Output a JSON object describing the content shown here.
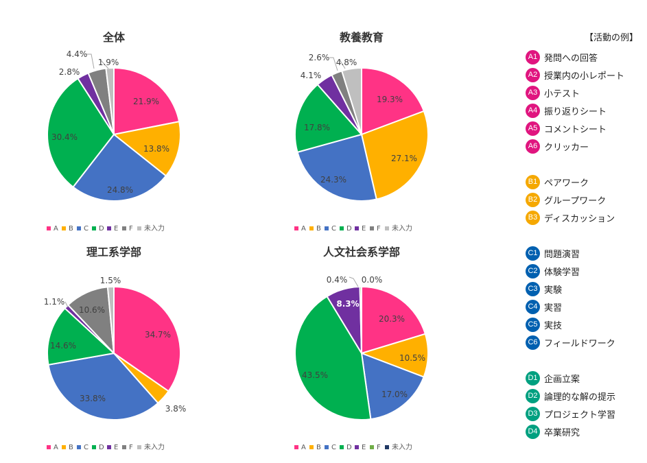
{
  "colors": {
    "A": "#ff3385",
    "B": "#ffb000",
    "C": "#4472c4",
    "D": "#00b050",
    "E": "#7030a0",
    "F": "#808080",
    "unentered": "#bfbfbf",
    "F_person": "#70ad47",
    "unentered_person": "#1f3864",
    "groupA": "#e0157f",
    "groupB": "#f5a800",
    "groupC": "#0060b0",
    "groupD": "#00a080"
  },
  "chart_data": [
    {
      "type": "pie",
      "title": "全体",
      "categories": [
        "A",
        "B",
        "C",
        "D",
        "E",
        "F",
        "未入力"
      ],
      "values": [
        21.9,
        13.8,
        24.8,
        30.4,
        2.8,
        4.4,
        1.9
      ],
      "labels": [
        "21.9%",
        "13.8%",
        "24.8%",
        "30.4%",
        "2.8%",
        "4.4%",
        "1.9%"
      ],
      "legend": [
        "A",
        "B",
        "C",
        "D",
        "E",
        "F",
        "未入力"
      ],
      "legend_position": "bottom"
    },
    {
      "type": "pie",
      "title": "教養教育",
      "categories": [
        "A",
        "B",
        "C",
        "D",
        "E",
        "F",
        "未入力"
      ],
      "values": [
        19.3,
        27.1,
        24.3,
        17.8,
        4.1,
        2.6,
        4.8
      ],
      "labels": [
        "19.3%",
        "27.1%",
        "24.3%",
        "17.8%",
        "4.1%",
        "2.6%",
        "4.8%"
      ],
      "legend": [
        "A",
        "B",
        "C",
        "D",
        "E",
        "F",
        "未入力"
      ],
      "legend_position": "bottom"
    },
    {
      "type": "pie",
      "title": "理工系学部",
      "categories": [
        "A",
        "B",
        "C",
        "D",
        "E",
        "F",
        "未入力"
      ],
      "values": [
        34.7,
        3.8,
        33.8,
        14.6,
        1.1,
        10.6,
        1.5
      ],
      "labels": [
        "34.7%",
        "3.8%",
        "33.8%",
        "14.6%",
        "1.1%",
        "10.6%",
        "1.5%"
      ],
      "legend": [
        "A",
        "B",
        "C",
        "D",
        "E",
        "F",
        "未入力"
      ],
      "legend_position": "bottom"
    },
    {
      "type": "pie",
      "title": "人文社会系学部",
      "categories": [
        "A",
        "B",
        "C",
        "D",
        "E",
        "F",
        "未入力"
      ],
      "values": [
        20.3,
        10.5,
        17.0,
        43.5,
        8.3,
        0.4,
        0.0
      ],
      "labels": [
        "20.3%",
        "10.5%",
        "17.0%",
        "43.5%",
        "8.3%",
        "0.4%",
        "0.0%"
      ],
      "legend": [
        "A",
        "B",
        "C",
        "D",
        "E",
        "F",
        "未入力"
      ],
      "legend_position": "bottom"
    }
  ],
  "activity_panel": {
    "title": "【活動の例】",
    "items": [
      {
        "code": "A1",
        "label": "発問への回答",
        "group": "A"
      },
      {
        "code": "A2",
        "label": "授業内の小レポート",
        "group": "A"
      },
      {
        "code": "A3",
        "label": "小テスト",
        "group": "A"
      },
      {
        "code": "A4",
        "label": "振り返りシート",
        "group": "A"
      },
      {
        "code": "A5",
        "label": "コメントシート",
        "group": "A"
      },
      {
        "code": "A6",
        "label": "クリッカー",
        "group": "A"
      },
      {
        "code": "B1",
        "label": "ペアワーク",
        "group": "B"
      },
      {
        "code": "B2",
        "label": "グループワーク",
        "group": "B"
      },
      {
        "code": "B3",
        "label": "ディスカッション",
        "group": "B"
      },
      {
        "code": "C1",
        "label": "問題演習",
        "group": "C"
      },
      {
        "code": "C2",
        "label": "体験学習",
        "group": "C"
      },
      {
        "code": "C3",
        "label": "実験",
        "group": "C"
      },
      {
        "code": "C4",
        "label": "実習",
        "group": "C"
      },
      {
        "code": "C5",
        "label": "実技",
        "group": "C"
      },
      {
        "code": "C6",
        "label": "フィールドワーク",
        "group": "C"
      },
      {
        "code": "D1",
        "label": "企画立案",
        "group": "D"
      },
      {
        "code": "D2",
        "label": "論理的な解の提示",
        "group": "D"
      },
      {
        "code": "D3",
        "label": "プロジェクト学習",
        "group": "D"
      },
      {
        "code": "D4",
        "label": "卒業研究",
        "group": "D"
      }
    ]
  }
}
